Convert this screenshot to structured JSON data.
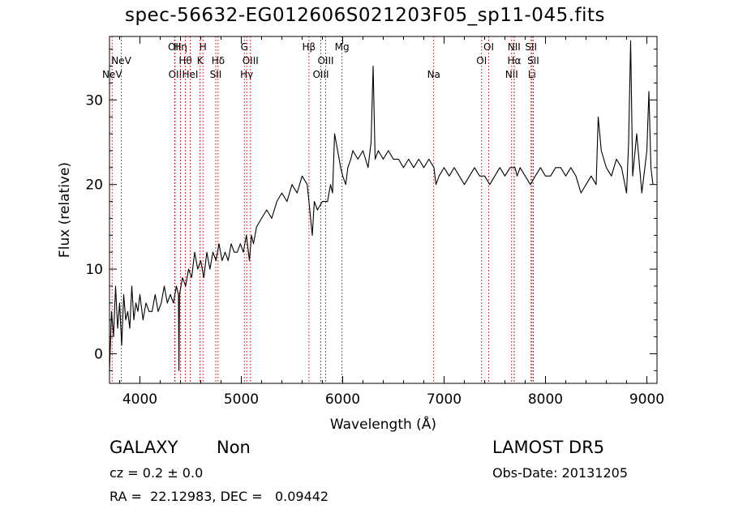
{
  "header": {
    "title": "spec-56632-EG012606S021203F05_sp11-045.fits"
  },
  "footer": {
    "object_class": "GALAXY",
    "subclass": "Non",
    "redshift": "cz = 0.2 ± 0.0",
    "coords": "RA =  22.12983, DEC =   0.09442",
    "survey": "LAMOST DR5",
    "obs_date": "Obs-Date: 20131205"
  },
  "colors": {
    "spectrum": "#000000",
    "line_markers": "#cc0000",
    "axes": "#000000"
  },
  "chart_data": {
    "type": "line",
    "title": "spec-56632-EG012606S021203F05_sp11-045.fits",
    "xlabel": "Wavelength (Å)",
    "ylabel": "Flux (relative)",
    "xlim": [
      3700,
      9100
    ],
    "ylim": [
      -3.5,
      37.5
    ],
    "xticks": [
      4000,
      5000,
      6000,
      7000,
      8000,
      9000
    ],
    "yticks": [
      0,
      10,
      20,
      30
    ],
    "grid": false,
    "legend": "none",
    "series": [
      {
        "x": [
          3700,
          3720,
          3740,
          3760,
          3780,
          3800,
          3820,
          3840,
          3860,
          3880,
          3900,
          3920,
          3940,
          3960,
          3980,
          4000,
          4030,
          4060,
          4090,
          4120,
          4150,
          4180,
          4210,
          4240,
          4270,
          4300,
          4330,
          4360,
          4380,
          4385,
          4390,
          4420,
          4450,
          4480,
          4510,
          4540,
          4570,
          4600,
          4630,
          4660,
          4690,
          4720,
          4750,
          4780,
          4810,
          4840,
          4870,
          4900,
          4930,
          4960,
          4990,
          5020,
          5050,
          5080,
          5100,
          5120,
          5150,
          5200,
          5250,
          5300,
          5350,
          5400,
          5450,
          5500,
          5550,
          5600,
          5650,
          5700,
          5720,
          5750,
          5800,
          5850,
          5880,
          5900,
          5920,
          5950,
          5980,
          6000,
          6030,
          6050,
          6080,
          6100,
          6150,
          6200,
          6250,
          6280,
          6300,
          6320,
          6350,
          6400,
          6450,
          6500,
          6550,
          6600,
          6650,
          6700,
          6750,
          6800,
          6850,
          6900,
          6920,
          6950,
          7000,
          7050,
          7100,
          7150,
          7200,
          7250,
          7300,
          7350,
          7400,
          7450,
          7500,
          7550,
          7600,
          7650,
          7700,
          7720,
          7750,
          7800,
          7850,
          7900,
          7950,
          8000,
          8050,
          8100,
          8150,
          8200,
          8250,
          8300,
          8350,
          8400,
          8450,
          8500,
          8520,
          8550,
          8600,
          8650,
          8700,
          8750,
          8800,
          8820,
          8840,
          8860,
          8900,
          8950,
          9000,
          9020,
          9040,
          9060
        ],
        "y": [
          -2,
          5,
          2,
          8,
          3,
          6,
          1,
          7,
          4,
          5,
          3,
          8,
          4,
          6,
          5,
          7,
          4,
          6,
          5,
          5,
          7,
          5,
          6,
          8,
          6,
          7,
          6,
          8,
          7,
          -2,
          7,
          9,
          8,
          10,
          9,
          12,
          10,
          11,
          9,
          12,
          10,
          12,
          11,
          13,
          11,
          12,
          11,
          13,
          12,
          12,
          13,
          12,
          14,
          11,
          14,
          13,
          15,
          16,
          17,
          16,
          18,
          19,
          18,
          20,
          19,
          21,
          20,
          14,
          18,
          17,
          18,
          18,
          20,
          19,
          26,
          24,
          22,
          21,
          20,
          22,
          23,
          24,
          23,
          24,
          22,
          25,
          34,
          23,
          24,
          23,
          24,
          23,
          23,
          22,
          23,
          22,
          23,
          22,
          23,
          22,
          20,
          21,
          22,
          21,
          22,
          21,
          20,
          21,
          22,
          21,
          21,
          20,
          21,
          22,
          21,
          22,
          22,
          21,
          22,
          21,
          20,
          21,
          22,
          21,
          21,
          22,
          22,
          21,
          22,
          21,
          19,
          20,
          21,
          20,
          28,
          24,
          22,
          21,
          23,
          22,
          19,
          25,
          37,
          21,
          26,
          19,
          24,
          31,
          22,
          20
        ]
      }
    ],
    "line_markers": [
      {
        "label": "NeV",
        "x": 3726,
        "row": 3
      },
      {
        "label": "NeV",
        "x": 3816,
        "row": 2
      },
      {
        "label": "OII",
        "x": 4342,
        "row": 1
      },
      {
        "label": "OII",
        "x": 4347,
        "row": 3
      },
      {
        "label": "Hη",
        "x": 4400,
        "row": 1
      },
      {
        "label": "Hθ",
        "x": 4448,
        "row": 2
      },
      {
        "label": "HeI",
        "x": 4496,
        "row": 3
      },
      {
        "label": "K",
        "x": 4593,
        "row": 2
      },
      {
        "label": "H",
        "x": 4622,
        "row": 1
      },
      {
        "label": "SII",
        "x": 4748,
        "row": 3
      },
      {
        "label": "Hδ",
        "x": 4771,
        "row": 2
      },
      {
        "label": "G",
        "x": 5030,
        "row": 1
      },
      {
        "label": "Hγ",
        "x": 5053,
        "row": 3
      },
      {
        "label": "OIII",
        "x": 5090,
        "row": 2
      },
      {
        "label": "Hβ",
        "x": 5667,
        "row": 1
      },
      {
        "label": "OIII",
        "x": 5784,
        "row": 3
      },
      {
        "label": "OIII",
        "x": 5832,
        "row": 2
      },
      {
        "label": "Mg",
        "x": 5993,
        "row": 1
      },
      {
        "label": "Na",
        "x": 6898,
        "row": 3
      },
      {
        "label": "OI",
        "x": 7370,
        "row": 2
      },
      {
        "label": "OI",
        "x": 7440,
        "row": 1
      },
      {
        "label": "NII",
        "x": 7666,
        "row": 3
      },
      {
        "label": "NII",
        "x": 7690,
        "row": 1
      },
      {
        "label": "Hα",
        "x": 7692,
        "row": 2
      },
      {
        "label": "SII",
        "x": 7858,
        "row": 1
      },
      {
        "label": "SII",
        "x": 7880,
        "row": 2
      },
      {
        "label": "Li",
        "x": 7867,
        "row": 3
      }
    ]
  }
}
